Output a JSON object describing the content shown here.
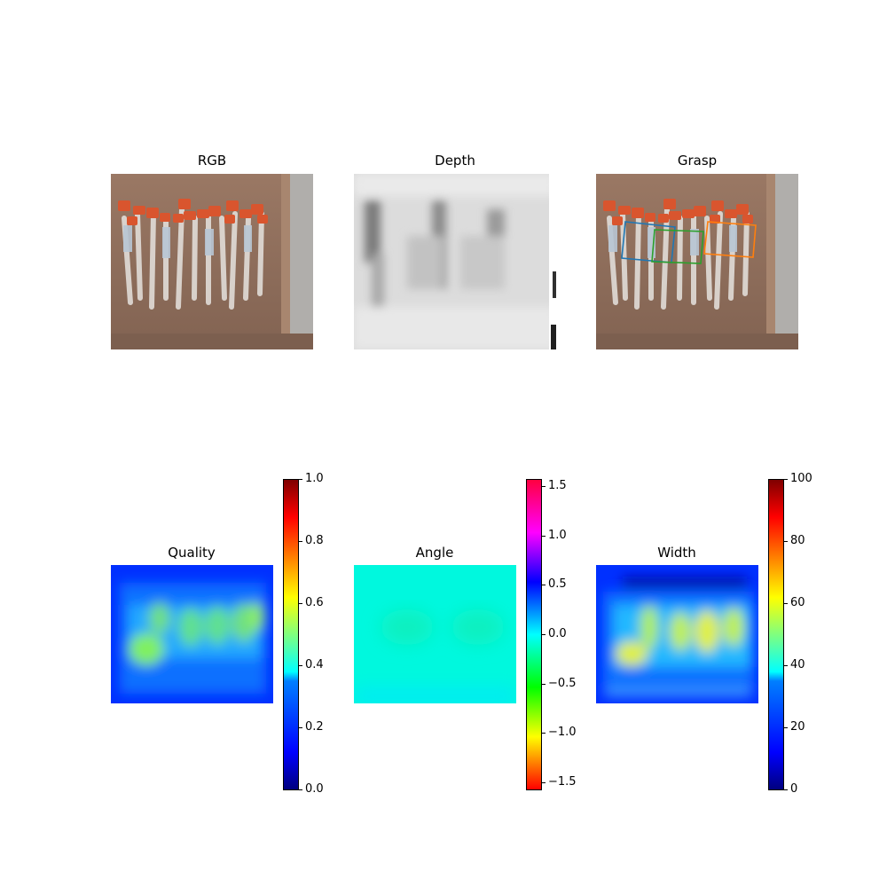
{
  "panels": {
    "rgb": {
      "title": "RGB"
    },
    "depth": {
      "title": "Depth"
    },
    "grasp": {
      "title": "Grasp"
    },
    "quality": {
      "title": "Quality"
    },
    "angle": {
      "title": "Angle"
    },
    "width": {
      "title": "Width"
    }
  },
  "colorbars": {
    "quality": {
      "ticks": [
        "0.0",
        "0.2",
        "0.4",
        "0.6",
        "0.8",
        "1.0"
      ],
      "min": 0,
      "max": 1,
      "colormap": "jet"
    },
    "angle": {
      "ticks": [
        "−1.5",
        "−1.0",
        "−0.5",
        "0.0",
        "0.5",
        "1.0",
        "1.5"
      ],
      "min": -1.5708,
      "max": 1.5708,
      "colormap": "hsv"
    },
    "width": {
      "ticks": [
        "0",
        "20",
        "40",
        "60",
        "80",
        "100"
      ],
      "min": 0,
      "max": 100,
      "colormap": "jet"
    }
  },
  "grasp_rectangles": [
    {
      "color": "#1f77b4"
    },
    {
      "color": "#2ca02c"
    },
    {
      "color": "#ff7f0e"
    }
  ],
  "colors": {
    "background": "#ffffff",
    "box_cardboard": "#8a6a55",
    "tube_cap": "#d9552e",
    "angle_field": "#00f0d8"
  }
}
